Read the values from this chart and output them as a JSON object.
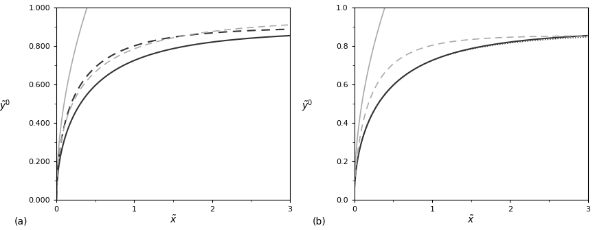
{
  "xlim": [
    0,
    3
  ],
  "ylim_a": [
    0.0,
    1.0
  ],
  "ylim_b": [
    0.0,
    1.0
  ],
  "yticks_a": [
    0.0,
    0.2,
    0.4,
    0.6,
    0.8,
    1.0
  ],
  "ytick_labels_a": [
    "0.000",
    "0.200",
    "0.400",
    "0.600",
    "0.800",
    "1.000"
  ],
  "yticks_b": [
    0.0,
    0.2,
    0.4,
    0.6,
    0.8,
    1.0
  ],
  "ytick_labels_b": [
    "0.0",
    "0.2",
    "0.4",
    "0.6",
    "0.8",
    "1.0"
  ],
  "xticks": [
    0,
    1,
    2,
    3
  ],
  "xlabel": "$\\tilde{x}$",
  "ylabel": "$\\tilde{y}^0$",
  "label_a": "(a)",
  "label_b": "(b)",
  "dark_color": "#333333",
  "light_color": "#aaaaaa",
  "background": "#ffffff",
  "figsize": [
    8.66,
    3.35
  ],
  "dpi": 100
}
